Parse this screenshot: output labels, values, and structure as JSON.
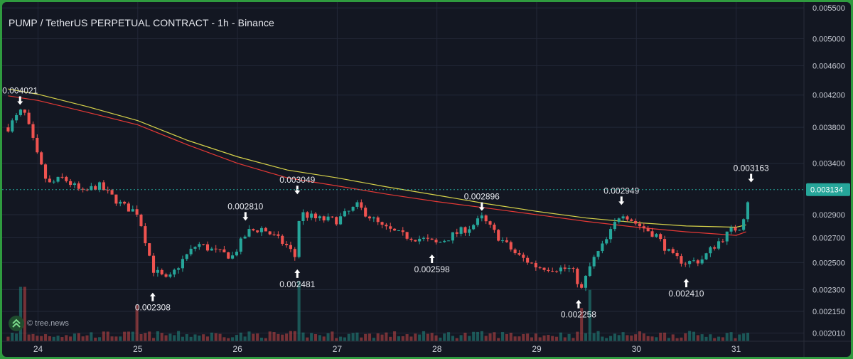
{
  "title": "PUMP / TetherUS PERPETUAL CONTRACT - 1h - Binance",
  "watermark": "© tree.news",
  "colors": {
    "background": "#131722",
    "grid": "#232838",
    "up": "#26a69a",
    "down": "#ef5350",
    "ma_fast": "#e53935",
    "ma_slow": "#d6d24a",
    "axis_text": "#c9cdd6",
    "price_tag": "#26a69a"
  },
  "chart_data": {
    "type": "candlestick",
    "x_axis_labels": [
      "24",
      "25",
      "26",
      "27",
      "28",
      "29",
      "30",
      "31"
    ],
    "y_axis_labels": [
      "0.005500",
      "0.005000",
      "0.004600",
      "0.004200",
      "0.003800",
      "0.003400",
      "0.002900",
      "0.002700",
      "0.002500",
      "0.002300",
      "0.002150",
      "0.002010"
    ],
    "y_scale": "log",
    "current_price": "0.003134",
    "price_range": [
      0.00196,
      0.0056
    ],
    "series": [
      {
        "kind": "moving-average",
        "color": "#e53935",
        "points": [
          [
            23.7,
            0.00419
          ],
          [
            24.0,
            0.00413
          ],
          [
            24.5,
            0.00398
          ],
          [
            25.0,
            0.00383
          ],
          [
            25.5,
            0.0036
          ],
          [
            26.0,
            0.0034
          ],
          [
            26.5,
            0.00325
          ],
          [
            27.0,
            0.00317
          ],
          [
            27.5,
            0.00309
          ],
          [
            28.0,
            0.00302
          ],
          [
            28.5,
            0.00296
          ],
          [
            29.0,
            0.0029
          ],
          [
            29.5,
            0.00284
          ],
          [
            30.0,
            0.00279
          ],
          [
            30.5,
            0.00275
          ],
          [
            31.0,
            0.00272
          ],
          [
            31.1,
            0.00275
          ]
        ]
      },
      {
        "kind": "moving-average",
        "color": "#d6d24a",
        "points": [
          [
            23.7,
            0.00428
          ],
          [
            24.0,
            0.00421
          ],
          [
            24.5,
            0.00405
          ],
          [
            25.0,
            0.00388
          ],
          [
            25.5,
            0.00365
          ],
          [
            26.0,
            0.00347
          ],
          [
            26.5,
            0.00333
          ],
          [
            27.0,
            0.00325
          ],
          [
            27.5,
            0.00316
          ],
          [
            28.0,
            0.00308
          ],
          [
            28.5,
            0.003
          ],
          [
            29.0,
            0.00293
          ],
          [
            29.5,
            0.00287
          ],
          [
            30.0,
            0.00283
          ],
          [
            30.5,
            0.0028
          ],
          [
            31.0,
            0.00279
          ],
          [
            31.1,
            0.00281
          ]
        ]
      }
    ],
    "candle_path": [
      [
        23.7,
        0.0038
      ],
      [
        23.85,
        0.00402
      ],
      [
        24.0,
        0.00345
      ],
      [
        24.1,
        0.00318
      ],
      [
        24.25,
        0.00325
      ],
      [
        24.45,
        0.0031
      ],
      [
        24.6,
        0.00318
      ],
      [
        24.85,
        0.00298
      ],
      [
        25.0,
        0.00292
      ],
      [
        25.15,
        0.00245
      ],
      [
        25.3,
        0.00236
      ],
      [
        25.45,
        0.00252
      ],
      [
        25.6,
        0.00265
      ],
      [
        25.8,
        0.00258
      ],
      [
        25.95,
        0.00255
      ],
      [
        26.1,
        0.00275
      ],
      [
        26.25,
        0.00278
      ],
      [
        26.35,
        0.00272
      ],
      [
        26.5,
        0.00263
      ],
      [
        26.6,
        0.00252
      ],
      [
        26.62,
        0.00292
      ],
      [
        26.8,
        0.00286
      ],
      [
        27.0,
        0.00285
      ],
      [
        27.2,
        0.00298
      ],
      [
        27.45,
        0.00279
      ],
      [
        27.65,
        0.00272
      ],
      [
        27.85,
        0.00269
      ],
      [
        28.0,
        0.00265
      ],
      [
        28.2,
        0.00274
      ],
      [
        28.35,
        0.0028
      ],
      [
        28.45,
        0.00287
      ],
      [
        28.6,
        0.00272
      ],
      [
        28.8,
        0.00256
      ],
      [
        29.0,
        0.00247
      ],
      [
        29.15,
        0.00246
      ],
      [
        29.35,
        0.00245
      ],
      [
        29.45,
        0.0023
      ],
      [
        29.55,
        0.0025
      ],
      [
        29.7,
        0.00268
      ],
      [
        29.85,
        0.00293
      ],
      [
        30.0,
        0.00282
      ],
      [
        30.2,
        0.00272
      ],
      [
        30.35,
        0.00255
      ],
      [
        30.5,
        0.0025
      ],
      [
        30.65,
        0.00252
      ],
      [
        30.8,
        0.00265
      ],
      [
        30.95,
        0.00276
      ],
      [
        31.05,
        0.0028
      ],
      [
        31.15,
        0.00315
      ]
    ],
    "volume_spikes": [
      [
        23.85,
        0.9
      ],
      [
        25.0,
        0.6
      ],
      [
        26.62,
        1.0
      ],
      [
        29.45,
        0.55
      ],
      [
        29.55,
        0.85
      ]
    ],
    "annotations": [
      {
        "label": "0.004021",
        "x": 23.82,
        "y": 0.004021,
        "arrow": "down"
      },
      {
        "label": "0.002308",
        "x": 25.15,
        "y": 0.002308,
        "arrow": "up"
      },
      {
        "label": "0.002810",
        "x": 26.08,
        "y": 0.00281,
        "arrow": "down"
      },
      {
        "label": "0.003049",
        "x": 26.6,
        "y": 0.003049,
        "arrow": "down"
      },
      {
        "label": "0.002481",
        "x": 26.6,
        "y": 0.002481,
        "arrow": "up"
      },
      {
        "label": "0.002598",
        "x": 27.95,
        "y": 0.002598,
        "arrow": "up"
      },
      {
        "label": "0.002896",
        "x": 28.45,
        "y": 0.002896,
        "arrow": "down"
      },
      {
        "label": "0.002258",
        "x": 29.42,
        "y": 0.002258,
        "arrow": "up"
      },
      {
        "label": "0.002949",
        "x": 29.85,
        "y": 0.002949,
        "arrow": "down"
      },
      {
        "label": "0.002410",
        "x": 30.5,
        "y": 0.00241,
        "arrow": "up"
      },
      {
        "label": "0.003163",
        "x": 31.15,
        "y": 0.003163,
        "arrow": "down"
      }
    ]
  }
}
